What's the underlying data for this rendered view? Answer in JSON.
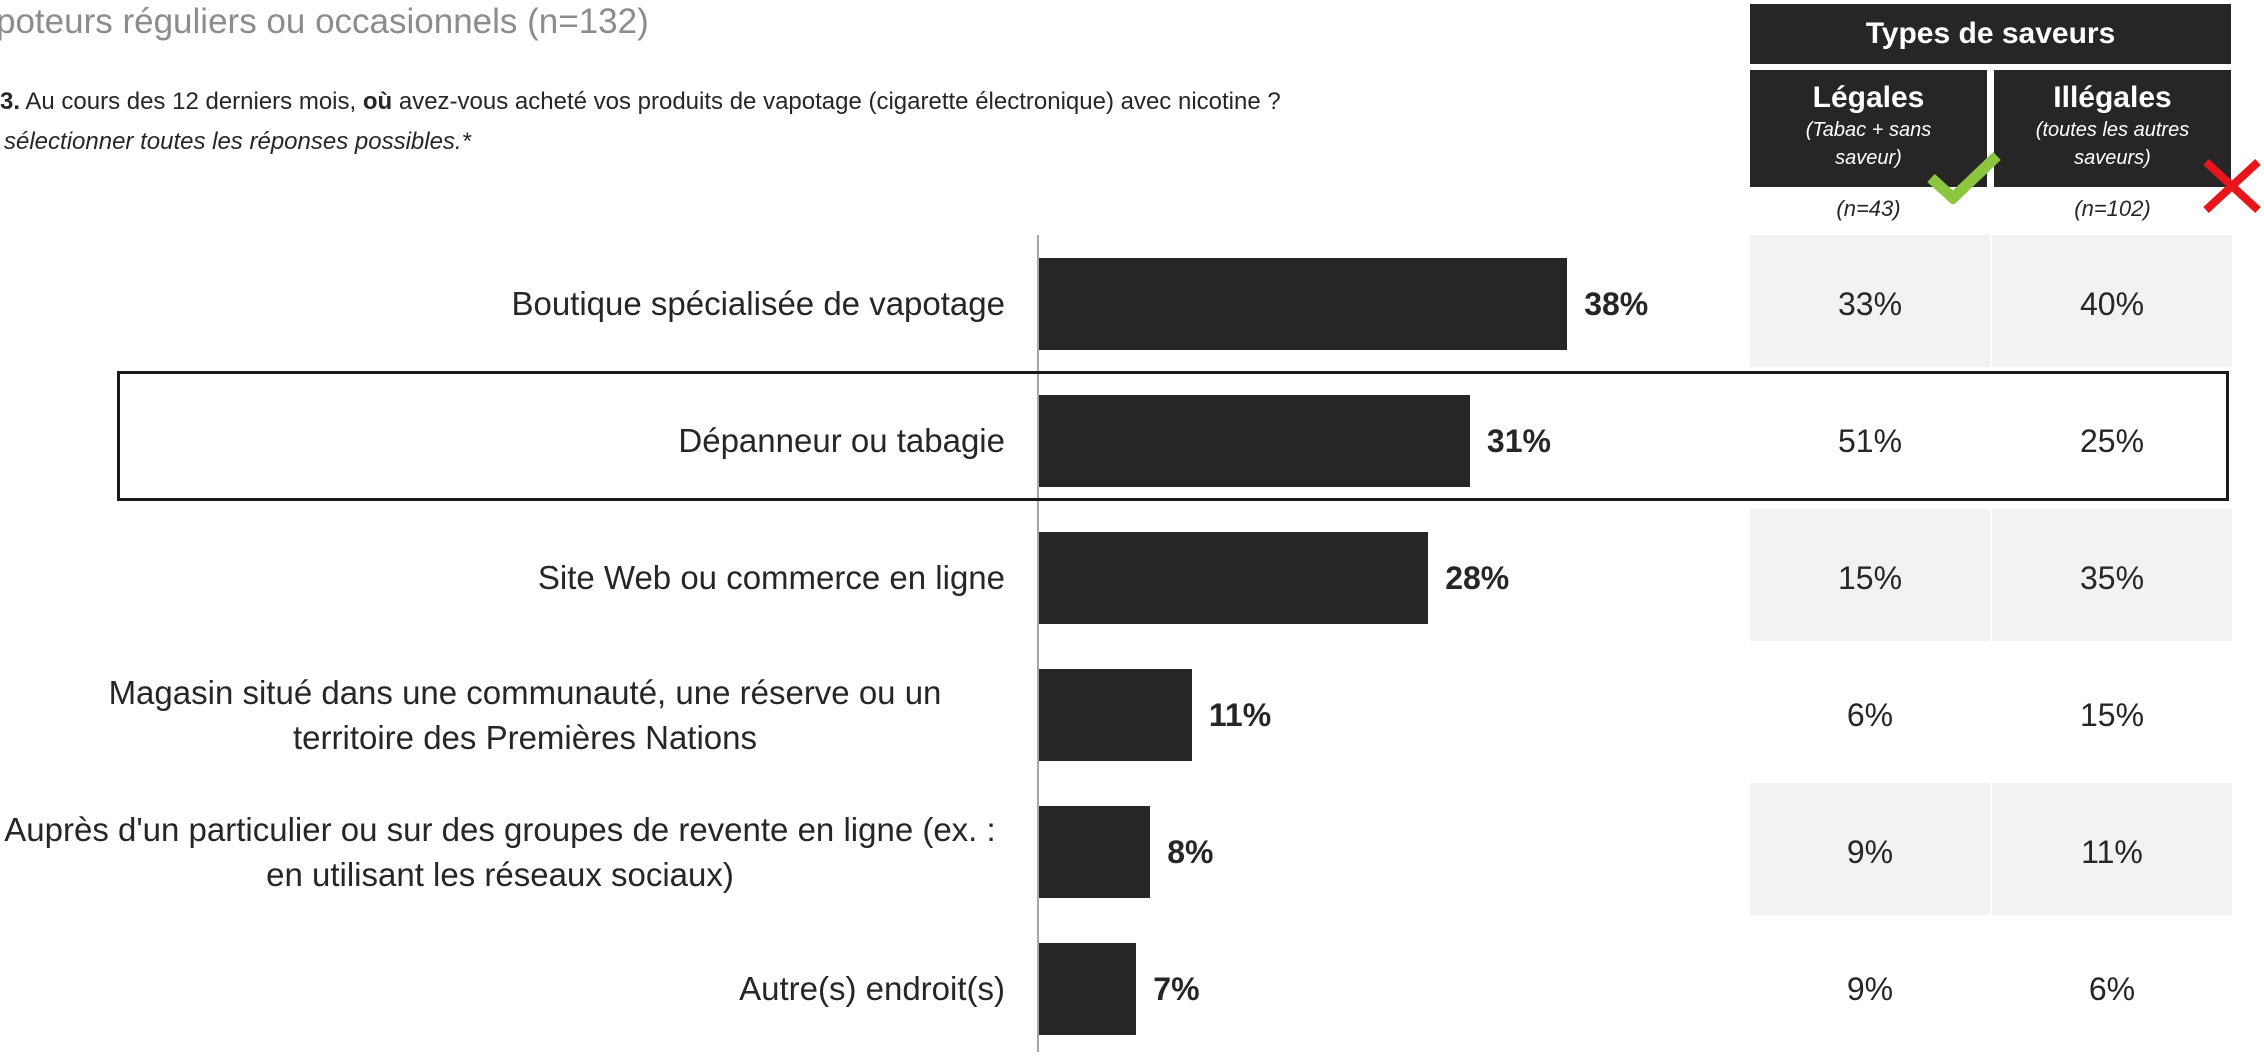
{
  "subtitle": "poteurs réguliers ou occasionnels (n=132)",
  "question": {
    "prefix": "3.",
    "part1": " Au cours des 12 derniers mois, ",
    "bold": "où",
    "part2": " avez-vous acheté vos produits de vapotage (cigarette électronique) avec nicotine ?",
    "instruction": "sélectionner toutes les réponses possibles.*"
  },
  "table_header": {
    "title": "Types de saveurs",
    "columns": [
      {
        "title": "Légales",
        "sub1": "(Tabac + sans",
        "sub2": "saveur)",
        "n": "(n=43)"
      },
      {
        "title": "Illégales",
        "sub1": "(toutes les autres",
        "sub2": "saveurs)",
        "n": "(n=102)"
      }
    ]
  },
  "rows": [
    {
      "label": "Boutique spécialisée de vapotage",
      "value_label": "38%",
      "legales": "33%",
      "illegales": "40%"
    },
    {
      "label": "Dépanneur ou tabagie",
      "value_label": "31%",
      "legales": "51%",
      "illegales": "25%"
    },
    {
      "label": "Site Web ou commerce en ligne",
      "value_label": "28%",
      "legales": "15%",
      "illegales": "35%"
    },
    {
      "label": "Magasin situé dans une communauté, une réserve ou un territoire des Premières Nations",
      "value_label": "11%",
      "legales": "6%",
      "illegales": "15%"
    },
    {
      "label": "Auprès d'un particulier ou sur des groupes de revente en ligne (ex. : en utilisant les réseaux sociaux)",
      "value_label": "8%",
      "legales": "9%",
      "illegales": "11%"
    },
    {
      "label": "Autre(s) endroit(s)",
      "value_label": "7%",
      "legales": "9%",
      "illegales": "6%"
    }
  ],
  "chart_data": {
    "type": "bar",
    "orientation": "horizontal",
    "categories": [
      "Boutique spécialisée de vapotage",
      "Dépanneur ou tabagie",
      "Site Web ou commerce en ligne",
      "Magasin situé dans une communauté, une réserve ou un territoire des Premières Nations",
      "Auprès d'un particulier ou sur des groupes de revente en ligne (ex. : en utilisant les réseaux sociaux)",
      "Autre(s) endroit(s)"
    ],
    "values": [
      38,
      31,
      28,
      11,
      8,
      7
    ],
    "unit": "%",
    "table_columns": [
      {
        "name": "Légales",
        "values": [
          33,
          51,
          15,
          6,
          9,
          9
        ]
      },
      {
        "name": "Illégales",
        "values": [
          40,
          25,
          35,
          15,
          11,
          6
        ]
      }
    ],
    "highlighted_category": "Dépanneur ou tabagie",
    "colors": {
      "bar": "#262626",
      "header": "#262626",
      "shade": "#f2f2f2",
      "check": "#8cc63f",
      "cross": "#e8151b"
    }
  },
  "icons": {
    "legales": "check-icon",
    "illegales": "cross-icon"
  }
}
